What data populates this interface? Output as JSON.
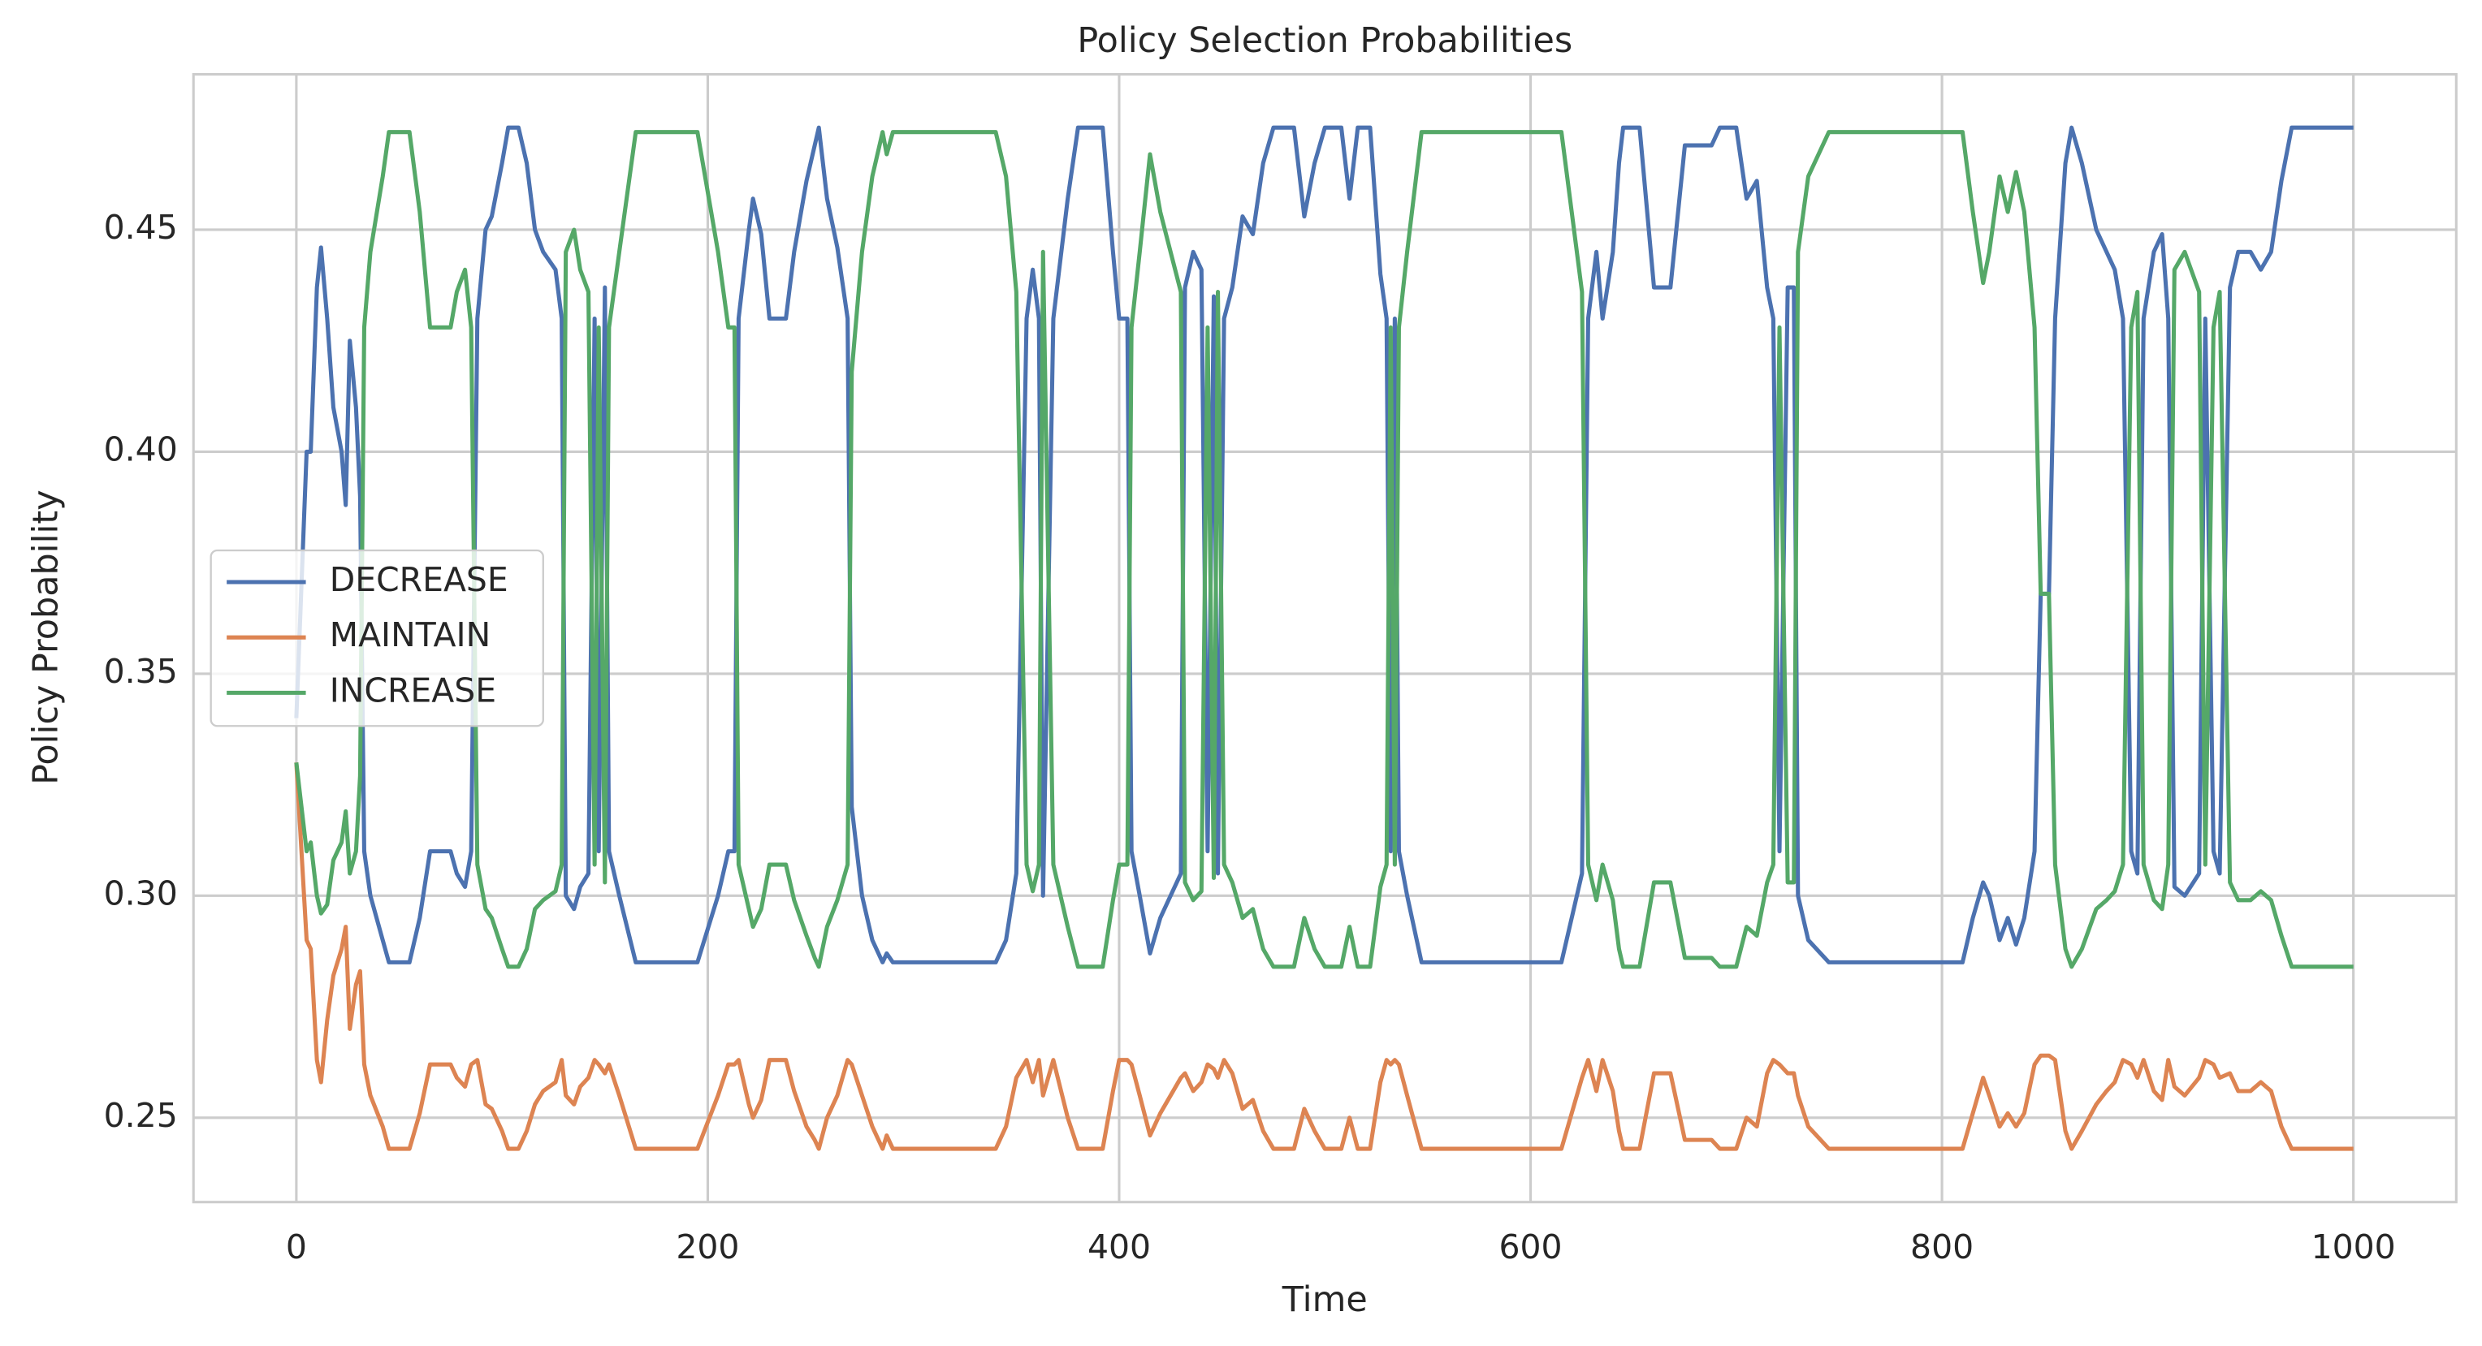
{
  "chart_data": {
    "type": "line",
    "title": "Policy Selection Probabilities",
    "x_label": "Time",
    "y_label": "Policy Probability",
    "xlim": [
      -50,
      1050
    ],
    "ylim": [
      0.231,
      0.485
    ],
    "xticks": [
      0,
      200,
      400,
      600,
      800,
      1000
    ],
    "yticks": [
      0.25,
      {
        "value": 0.3,
        "label": "0.30"
      },
      0.35,
      {
        "value": 0.4,
        "label": "0.40"
      },
      0.45
    ],
    "grid": true,
    "legend": "center left",
    "x": [
      0,
      5,
      7,
      10,
      12,
      15,
      18,
      22,
      24,
      26,
      29,
      31,
      33,
      36,
      42,
      45,
      55,
      60,
      65,
      75,
      78,
      82,
      85,
      88,
      92,
      95,
      100,
      103,
      108,
      112,
      116,
      120,
      126,
      129,
      131,
      135,
      138,
      142,
      145,
      147,
      150,
      152,
      157,
      165,
      195,
      205,
      210,
      213,
      215,
      220,
      222,
      226,
      230,
      238,
      242,
      248,
      252,
      254,
      258,
      263,
      268,
      270,
      275,
      280,
      285,
      287,
      290,
      340,
      345,
      350,
      355,
      358,
      361,
      363,
      368,
      375,
      380,
      392,
      397,
      400,
      404,
      406,
      410,
      415,
      420,
      425,
      430,
      432,
      436,
      440,
      443,
      446,
      448,
      451,
      455,
      460,
      465,
      470,
      475,
      485,
      490,
      495,
      500,
      508,
      512,
      516,
      522,
      527,
      530,
      532,
      534,
      536,
      540,
      547,
      615,
      620,
      625,
      628,
      632,
      635,
      640,
      643,
      645,
      653,
      660,
      668,
      675,
      688,
      692,
      700,
      705,
      710,
      715,
      718,
      721,
      725,
      728,
      730,
      735,
      745,
      810,
      815,
      820,
      823,
      828,
      832,
      836,
      840,
      845,
      848,
      852,
      855,
      860,
      863,
      868,
      875,
      880,
      884,
      888,
      892,
      895,
      898,
      903,
      907,
      910,
      913,
      918,
      925,
      928,
      932,
      935,
      940,
      944,
      950,
      955,
      960,
      965,
      970,
      1000
    ],
    "series": [
      {
        "name": "DECREASE",
        "color": "#4c72b0",
        "values": [
          0.34,
          0.4,
          0.4,
          0.437,
          0.446,
          0.43,
          0.41,
          0.4,
          0.388,
          0.425,
          0.41,
          0.39,
          0.31,
          0.3,
          0.29,
          0.285,
          0.285,
          0.295,
          0.31,
          0.31,
          0.305,
          0.302,
          0.31,
          0.43,
          0.45,
          0.453,
          0.465,
          0.473,
          0.473,
          0.465,
          0.45,
          0.445,
          0.441,
          0.43,
          0.3,
          0.297,
          0.302,
          0.305,
          0.43,
          0.31,
          0.437,
          0.31,
          0.3,
          0.285,
          0.285,
          0.3,
          0.31,
          0.31,
          0.43,
          0.45,
          0.457,
          0.449,
          0.43,
          0.43,
          0.445,
          0.461,
          0.469,
          0.473,
          0.457,
          0.446,
          0.43,
          0.32,
          0.3,
          0.29,
          0.285,
          0.287,
          0.285,
          0.285,
          0.29,
          0.305,
          0.43,
          0.441,
          0.43,
          0.3,
          0.43,
          0.457,
          0.473,
          0.473,
          0.445,
          0.43,
          0.43,
          0.31,
          0.3,
          0.287,
          0.295,
          0.3,
          0.305,
          0.437,
          0.445,
          0.441,
          0.31,
          0.435,
          0.305,
          0.43,
          0.437,
          0.453,
          0.449,
          0.465,
          0.473,
          0.473,
          0.453,
          0.465,
          0.473,
          0.473,
          0.457,
          0.473,
          0.473,
          0.44,
          0.43,
          0.31,
          0.43,
          0.31,
          0.3,
          0.285,
          0.285,
          0.295,
          0.305,
          0.43,
          0.445,
          0.43,
          0.445,
          0.465,
          0.473,
          0.473,
          0.437,
          0.437,
          0.469,
          0.469,
          0.473,
          0.473,
          0.457,
          0.461,
          0.437,
          0.43,
          0.31,
          0.437,
          0.437,
          0.3,
          0.29,
          0.285,
          0.285,
          0.295,
          0.303,
          0.3,
          0.29,
          0.295,
          0.289,
          0.295,
          0.31,
          0.368,
          0.368,
          0.43,
          0.465,
          0.473,
          0.465,
          0.45,
          0.445,
          0.441,
          0.43,
          0.31,
          0.305,
          0.43,
          0.445,
          0.449,
          0.43,
          0.302,
          0.3,
          0.305,
          0.43,
          0.31,
          0.305,
          0.437,
          0.445,
          0.445,
          0.441,
          0.445,
          0.461,
          0.473,
          0.473
        ]
      },
      {
        "name": "MAINTAIN",
        "color": "#dd8452",
        "values": [
          0.33,
          0.29,
          0.288,
          0.263,
          0.258,
          0.272,
          0.282,
          0.288,
          0.293,
          0.27,
          0.28,
          0.283,
          0.262,
          0.255,
          0.248,
          0.243,
          0.243,
          0.251,
          0.262,
          0.262,
          0.259,
          0.257,
          0.262,
          0.263,
          0.253,
          0.252,
          0.247,
          0.243,
          0.243,
          0.247,
          0.253,
          0.256,
          0.258,
          0.263,
          0.255,
          0.253,
          0.257,
          0.259,
          0.263,
          0.262,
          0.26,
          0.262,
          0.255,
          0.243,
          0.243,
          0.255,
          0.262,
          0.262,
          0.263,
          0.253,
          0.25,
          0.254,
          0.263,
          0.263,
          0.256,
          0.248,
          0.245,
          0.243,
          0.25,
          0.255,
          0.263,
          0.262,
          0.255,
          0.248,
          0.243,
          0.246,
          0.243,
          0.243,
          0.248,
          0.259,
          0.263,
          0.258,
          0.263,
          0.255,
          0.263,
          0.25,
          0.243,
          0.243,
          0.256,
          0.263,
          0.263,
          0.262,
          0.255,
          0.246,
          0.251,
          0.255,
          0.259,
          0.26,
          0.256,
          0.258,
          0.262,
          0.261,
          0.259,
          0.263,
          0.26,
          0.252,
          0.254,
          0.247,
          0.243,
          0.243,
          0.252,
          0.247,
          0.243,
          0.243,
          0.25,
          0.243,
          0.243,
          0.258,
          0.263,
          0.262,
          0.263,
          0.262,
          0.255,
          0.243,
          0.243,
          0.251,
          0.259,
          0.263,
          0.256,
          0.263,
          0.256,
          0.247,
          0.243,
          0.243,
          0.26,
          0.26,
          0.245,
          0.245,
          0.243,
          0.243,
          0.25,
          0.248,
          0.26,
          0.263,
          0.262,
          0.26,
          0.26,
          0.255,
          0.248,
          0.243,
          0.243,
          0.251,
          0.259,
          0.255,
          0.248,
          0.251,
          0.248,
          0.251,
          0.262,
          0.264,
          0.264,
          0.263,
          0.247,
          0.243,
          0.247,
          0.253,
          0.256,
          0.258,
          0.263,
          0.262,
          0.259,
          0.263,
          0.256,
          0.254,
          0.263,
          0.257,
          0.255,
          0.259,
          0.263,
          0.262,
          0.259,
          0.26,
          0.256,
          0.256,
          0.258,
          0.256,
          0.248,
          0.243,
          0.243
        ]
      },
      {
        "name": "INCREASE",
        "color": "#55a868",
        "values": [
          0.33,
          0.31,
          0.312,
          0.3,
          0.296,
          0.298,
          0.308,
          0.312,
          0.319,
          0.305,
          0.31,
          0.327,
          0.428,
          0.445,
          0.462,
          0.472,
          0.472,
          0.454,
          0.428,
          0.428,
          0.436,
          0.441,
          0.428,
          0.307,
          0.297,
          0.295,
          0.288,
          0.284,
          0.284,
          0.288,
          0.297,
          0.299,
          0.301,
          0.307,
          0.445,
          0.45,
          0.441,
          0.436,
          0.307,
          0.428,
          0.303,
          0.428,
          0.445,
          0.472,
          0.472,
          0.445,
          0.428,
          0.428,
          0.307,
          0.297,
          0.293,
          0.297,
          0.307,
          0.307,
          0.299,
          0.291,
          0.286,
          0.284,
          0.293,
          0.299,
          0.307,
          0.418,
          0.445,
          0.462,
          0.472,
          0.467,
          0.472,
          0.472,
          0.462,
          0.436,
          0.307,
          0.301,
          0.307,
          0.445,
          0.307,
          0.293,
          0.284,
          0.284,
          0.299,
          0.307,
          0.307,
          0.428,
          0.445,
          0.467,
          0.454,
          0.445,
          0.436,
          0.303,
          0.299,
          0.301,
          0.428,
          0.304,
          0.436,
          0.307,
          0.303,
          0.295,
          0.297,
          0.288,
          0.284,
          0.284,
          0.295,
          0.288,
          0.284,
          0.284,
          0.293,
          0.284,
          0.284,
          0.302,
          0.307,
          0.428,
          0.307,
          0.428,
          0.445,
          0.472,
          0.472,
          0.454,
          0.436,
          0.307,
          0.299,
          0.307,
          0.299,
          0.288,
          0.284,
          0.284,
          0.303,
          0.303,
          0.286,
          0.286,
          0.284,
          0.284,
          0.293,
          0.291,
          0.303,
          0.307,
          0.428,
          0.303,
          0.303,
          0.445,
          0.462,
          0.472,
          0.472,
          0.454,
          0.438,
          0.445,
          0.462,
          0.454,
          0.463,
          0.454,
          0.428,
          0.368,
          0.368,
          0.307,
          0.288,
          0.284,
          0.288,
          0.297,
          0.299,
          0.301,
          0.307,
          0.428,
          0.436,
          0.307,
          0.299,
          0.297,
          0.307,
          0.441,
          0.445,
          0.436,
          0.307,
          0.428,
          0.436,
          0.303,
          0.299,
          0.299,
          0.301,
          0.299,
          0.291,
          0.284,
          0.284
        ]
      }
    ]
  }
}
